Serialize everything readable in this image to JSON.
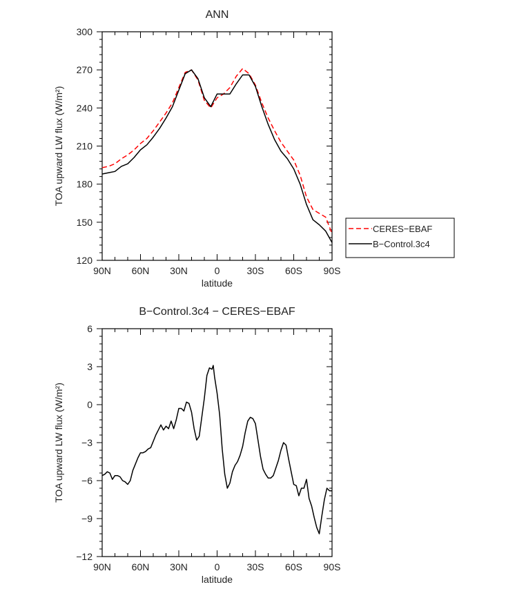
{
  "chart_data": [
    {
      "type": "line",
      "title": "ANN",
      "xlabel": "latitude",
      "ylabel": "TOA upward LW flux (W/m²)",
      "xlim": [
        90,
        -90
      ],
      "ylim": [
        120,
        300
      ],
      "x_ticks": [
        90,
        60,
        30,
        0,
        -30,
        -60,
        -90
      ],
      "x_tick_labels": [
        "90N",
        "60N",
        "30N",
        "0",
        "30S",
        "60S",
        "90S"
      ],
      "y_ticks": [
        120,
        150,
        180,
        210,
        240,
        270,
        300
      ],
      "y_tick_labels": [
        "120",
        "150",
        "180",
        "210",
        "240",
        "270",
        "300"
      ],
      "legend": {
        "placement": "right",
        "entries": [
          "CERES-EBAF",
          "B-Control.3c4"
        ]
      },
      "series": [
        {
          "name": "CERES-EBAF",
          "color": "#ff0000",
          "style": "dashed",
          "x": [
            90,
            85,
            80,
            75,
            70,
            65,
            60,
            55,
            50,
            45,
            40,
            35,
            30,
            25,
            20,
            15,
            10,
            5,
            0,
            -5,
            -10,
            -15,
            -20,
            -25,
            -30,
            -35,
            -40,
            -45,
            -50,
            -55,
            -60,
            -65,
            -70,
            -75,
            -80,
            -85,
            -90
          ],
          "y": [
            193,
            194,
            196,
            200,
            203,
            207,
            212,
            216,
            222,
            229,
            236,
            244,
            256,
            268,
            270,
            262,
            246,
            240,
            248,
            251,
            256,
            265,
            271,
            267,
            258,
            244,
            232,
            222,
            213,
            206,
            199,
            187,
            170,
            160,
            157,
            154,
            141
          ]
        },
        {
          "name": "B-Control.3c4",
          "color": "#000000",
          "style": "solid",
          "x": [
            90,
            85,
            80,
            75,
            70,
            65,
            60,
            55,
            50,
            45,
            40,
            35,
            30,
            25,
            20,
            15,
            10,
            5,
            0,
            -5,
            -10,
            -15,
            -20,
            -25,
            -30,
            -35,
            -40,
            -45,
            -50,
            -55,
            -60,
            -65,
            -70,
            -75,
            -80,
            -85,
            -90
          ],
          "y": [
            188,
            189,
            190,
            194,
            196,
            201,
            207,
            211,
            217,
            224,
            232,
            241,
            254,
            267,
            270,
            263,
            248,
            241,
            251,
            251,
            251,
            259,
            266,
            266,
            257,
            241,
            227,
            215,
            206,
            200,
            192,
            180,
            164,
            152,
            148,
            143,
            134
          ]
        }
      ]
    },
    {
      "type": "line",
      "title": "B-Control.3c4 - CERES-EBAF",
      "xlabel": "latitude",
      "ylabel": "TOA upward LW flux (W/m²)",
      "xlim": [
        90,
        -90
      ],
      "ylim": [
        -12,
        6
      ],
      "x_ticks": [
        90,
        60,
        30,
        0,
        -30,
        -60,
        -90
      ],
      "x_tick_labels": [
        "90N",
        "60N",
        "30N",
        "0",
        "30S",
        "60S",
        "90S"
      ],
      "y_ticks": [
        -12,
        -9,
        -6,
        -3,
        0,
        3,
        6
      ],
      "y_tick_labels": [
        "-12",
        "-9",
        "-6",
        "-3",
        "0",
        "3",
        "6"
      ],
      "series": [
        {
          "color": "#000000",
          "style": "solid",
          "x": [
            90,
            88,
            86,
            84,
            82,
            80,
            78,
            76,
            74,
            72,
            70,
            68,
            66,
            64,
            62,
            60,
            58,
            56,
            54,
            52,
            50,
            48,
            46,
            44,
            42,
            40,
            38,
            36,
            34,
            32,
            30,
            28,
            26,
            24,
            22,
            20,
            18,
            16,
            14,
            12,
            10,
            8,
            6,
            4,
            3,
            2,
            0,
            -2,
            -4,
            -6,
            -8,
            -10,
            -12,
            -14,
            -16,
            -18,
            -20,
            -22,
            -24,
            -26,
            -28,
            -30,
            -32,
            -34,
            -36,
            -38,
            -40,
            -42,
            -44,
            -46,
            -48,
            -50,
            -52,
            -54,
            -56,
            -58,
            -60,
            -62,
            -64,
            -66,
            -68,
            -70,
            -72,
            -74,
            -76,
            -78,
            -80,
            -82,
            -84,
            -86,
            -88,
            -90
          ],
          "y": [
            -5.6,
            -5.5,
            -5.3,
            -5.4,
            -5.9,
            -5.6,
            -5.6,
            -5.7,
            -6.0,
            -6.1,
            -6.3,
            -6.0,
            -5.2,
            -4.7,
            -4.2,
            -3.8,
            -3.8,
            -3.7,
            -3.5,
            -3.4,
            -2.9,
            -2.4,
            -2.0,
            -1.6,
            -2.0,
            -1.7,
            -1.9,
            -1.3,
            -1.9,
            -1.2,
            -0.3,
            -0.3,
            -0.5,
            0.2,
            0.1,
            -0.6,
            -1.9,
            -2.8,
            -2.5,
            -1.0,
            0.5,
            2.3,
            2.9,
            2.8,
            3.1,
            2.2,
            0.9,
            -0.8,
            -3.5,
            -5.5,
            -6.6,
            -6.2,
            -5.3,
            -4.8,
            -4.5,
            -4.0,
            -3.3,
            -2.2,
            -1.3,
            -1.0,
            -1.1,
            -1.5,
            -2.8,
            -4.1,
            -5.1,
            -5.5,
            -5.8,
            -5.8,
            -5.6,
            -5.0,
            -4.4,
            -3.6,
            -3.0,
            -3.2,
            -4.3,
            -5.3,
            -6.3,
            -6.4,
            -7.2,
            -6.6,
            -6.6,
            -5.9,
            -7.4,
            -8.0,
            -8.9,
            -9.7,
            -10.2,
            -8.8,
            -7.5,
            -6.6,
            -6.8,
            -6.8
          ]
        }
      ]
    }
  ]
}
